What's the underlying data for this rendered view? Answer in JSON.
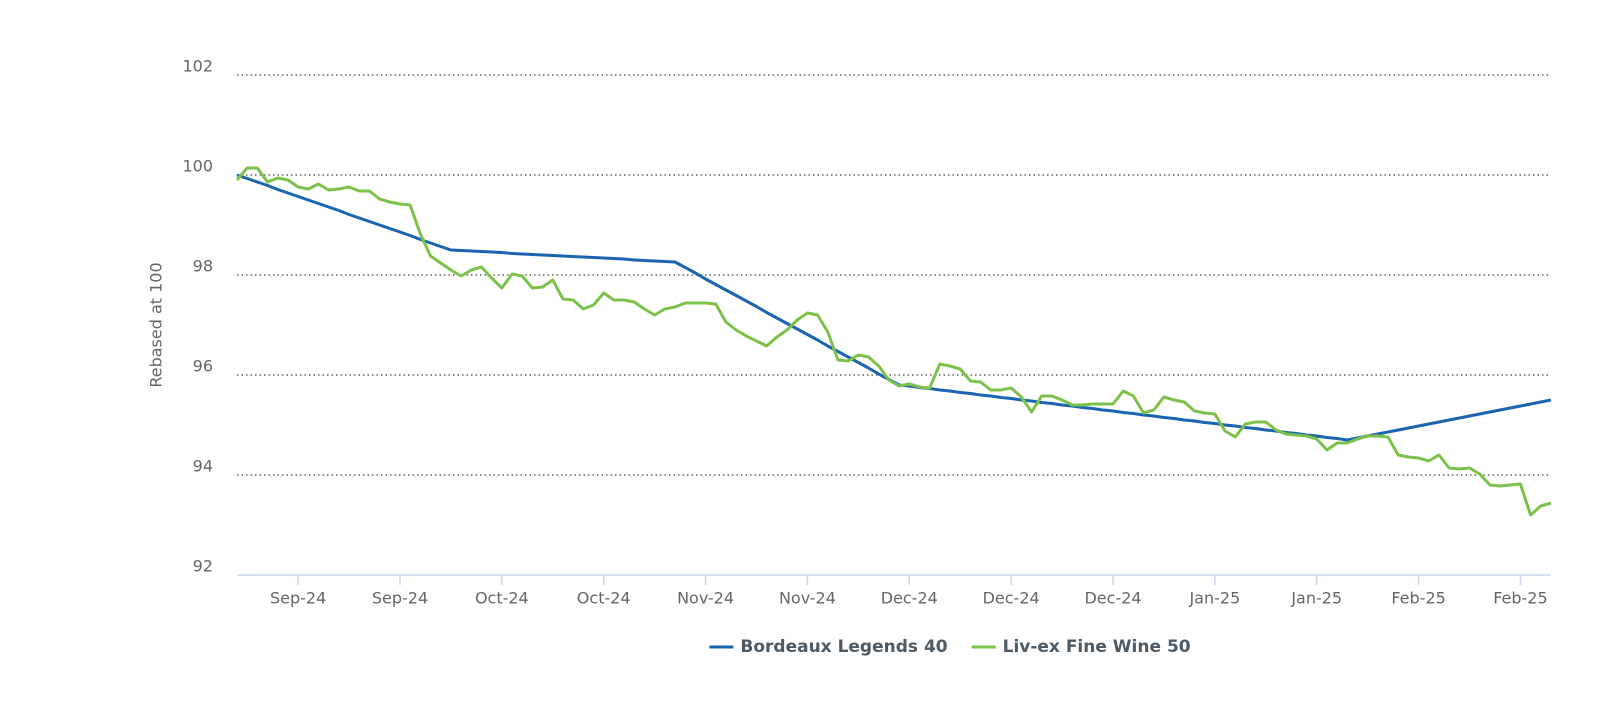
{
  "chart_data": {
    "type": "line",
    "y_label": "Rebased at 100",
    "categories": [
      null,
      null,
      null,
      null,
      null,
      null,
      "Sep-24",
      null,
      null,
      null,
      null,
      null,
      null,
      null,
      null,
      null,
      "Sep-24",
      null,
      null,
      null,
      null,
      null,
      null,
      null,
      null,
      null,
      "Oct-24",
      null,
      null,
      null,
      null,
      null,
      null,
      null,
      null,
      null,
      "Oct-24",
      null,
      null,
      null,
      null,
      null,
      null,
      null,
      null,
      null,
      "Nov-24",
      null,
      null,
      null,
      null,
      null,
      null,
      null,
      null,
      null,
      "Nov-24",
      null,
      null,
      null,
      null,
      null,
      null,
      null,
      null,
      null,
      "Dec-24",
      null,
      null,
      null,
      null,
      null,
      null,
      null,
      null,
      null,
      "Dec-24",
      null,
      null,
      null,
      null,
      null,
      null,
      null,
      null,
      null,
      "Dec-24",
      null,
      null,
      null,
      null,
      null,
      null,
      null,
      null,
      null,
      "Jan-25",
      null,
      null,
      null,
      null,
      null,
      null,
      null,
      null,
      null,
      "Jan-25",
      null,
      null,
      null,
      null,
      null,
      null,
      null,
      null,
      null,
      "Feb-25",
      null,
      null,
      null,
      null,
      null,
      null,
      null,
      null,
      null,
      "Feb-25",
      null,
      null,
      null
    ],
    "series": [
      {
        "name": "Bordeaux Legends 40",
        "color": "#1b64b1",
        "values": [
          100,
          99.93,
          99.86,
          99.79,
          99.71,
          99.64,
          99.57,
          99.5,
          99.43,
          99.36,
          99.29,
          99.21,
          99.14,
          99.07,
          99,
          98.93,
          98.86,
          98.79,
          98.71,
          98.64,
          98.57,
          98.5,
          98.49,
          98.48,
          98.47,
          98.46,
          98.45,
          98.43,
          98.42,
          98.41,
          98.4,
          98.39,
          98.38,
          98.37,
          98.36,
          98.35,
          98.34,
          98.33,
          98.32,
          98.3,
          98.29,
          98.28,
          98.27,
          98.26,
          98.15,
          98.04,
          97.92,
          97.81,
          97.7,
          97.59,
          97.48,
          97.37,
          97.25,
          97.14,
          97.03,
          96.92,
          96.81,
          96.7,
          96.58,
          96.47,
          96.36,
          96.25,
          96.14,
          96.02,
          95.91,
          95.8,
          95.78,
          95.75,
          95.73,
          95.7,
          95.68,
          95.65,
          95.63,
          95.6,
          95.58,
          95.55,
          95.53,
          95.5,
          95.48,
          95.45,
          95.43,
          95.4,
          95.38,
          95.35,
          95.33,
          95.3,
          95.28,
          95.25,
          95.23,
          95.2,
          95.18,
          95.15,
          95.13,
          95.1,
          95.08,
          95.05,
          95.03,
          95,
          94.98,
          94.95,
          94.93,
          94.9,
          94.88,
          94.85,
          94.83,
          94.8,
          94.78,
          94.75,
          94.73,
          94.7,
          94.74,
          94.78,
          94.82,
          94.86,
          94.9,
          94.94,
          94.98,
          95.02,
          95.06,
          95.1,
          95.14,
          95.18,
          95.22,
          95.26,
          95.3,
          95.34,
          95.38,
          95.42,
          95.46,
          95.5
        ]
      },
      {
        "name": "Liv-ex Fine Wine 50",
        "color": "#7cc24a",
        "values": [
          99.9,
          100.14,
          100.14,
          99.86,
          99.94,
          99.9,
          99.76,
          99.72,
          99.82,
          99.7,
          99.72,
          99.76,
          99.68,
          99.68,
          99.52,
          99.46,
          99.42,
          99.4,
          98.82,
          98.38,
          98.24,
          98.1,
          97.98,
          98.1,
          98.16,
          97.94,
          97.74,
          98.02,
          97.98,
          97.74,
          97.76,
          97.9,
          97.52,
          97.5,
          97.32,
          97.4,
          97.64,
          97.5,
          97.5,
          97.46,
          97.32,
          97.2,
          97.32,
          97.36,
          97.44,
          97.44,
          97.44,
          97.42,
          97.06,
          96.9,
          96.78,
          96.68,
          96.58,
          96.76,
          96.9,
          97.1,
          97.24,
          97.2,
          96.86,
          96.3,
          96.28,
          96.4,
          96.36,
          96.18,
          95.9,
          95.78,
          95.82,
          95.76,
          95.74,
          96.22,
          96.18,
          96.12,
          95.88,
          95.86,
          95.7,
          95.7,
          95.74,
          95.56,
          95.26,
          95.58,
          95.58,
          95.5,
          95.4,
          95.4,
          95.42,
          95.42,
          95.42,
          95.68,
          95.58,
          95.24,
          95.3,
          95.56,
          95.5,
          95.46,
          95.28,
          95.24,
          95.22,
          94.88,
          94.76,
          95.02,
          95.06,
          95.06,
          94.9,
          94.82,
          94.8,
          94.78,
          94.72,
          94.5,
          94.64,
          94.64,
          94.72,
          94.78,
          94.78,
          94.76,
          94.4,
          94.36,
          94.34,
          94.28,
          94.4,
          94.14,
          94.12,
          94.14,
          94.02,
          93.8,
          93.78,
          93.8,
          93.82,
          93.2,
          93.38,
          93.44
        ]
      }
    ],
    "ylim": [
      92,
      102
    ],
    "yticks": [
      92,
      94,
      96,
      98,
      100,
      102
    ],
    "grid": true,
    "legend": "bottom"
  }
}
